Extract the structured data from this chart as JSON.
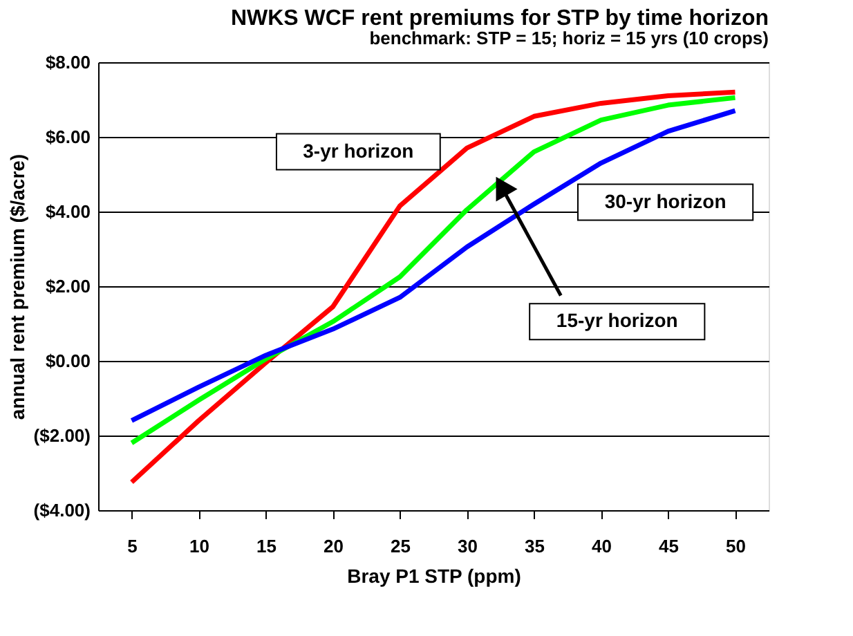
{
  "chart_data": {
    "type": "line",
    "title": "NWKS WCF rent premiums for STP by time horizon",
    "subtitle": "benchmark:   STP = 15; horiz = 15 yrs (10 crops)",
    "xlabel": "Bray P1 STP (ppm)",
    "ylabel": "annual rent premium ($/acre)",
    "x": [
      5,
      10,
      15,
      20,
      25,
      30,
      35,
      40,
      45,
      50
    ],
    "series": [
      {
        "name": "3-yr horizon",
        "color": "#ff0000",
        "values": [
          -3.25,
          -1.6,
          -0.05,
          1.45,
          4.15,
          5.7,
          6.55,
          6.9,
          7.1,
          7.2
        ]
      },
      {
        "color": "#00ff00",
        "values": [
          -2.2,
          -1.05,
          0.05,
          1.05,
          2.25,
          4.05,
          5.6,
          6.45,
          6.85,
          7.05
        ]
      },
      {
        "name": "30-yr horizon",
        "color": "#0000ff",
        "values": [
          -1.6,
          -0.7,
          0.15,
          0.85,
          1.7,
          3.05,
          4.2,
          5.3,
          6.15,
          6.7
        ]
      }
    ],
    "xlim": [
      2.5,
      52.5
    ],
    "xticks": [
      5,
      10,
      15,
      20,
      25,
      30,
      35,
      40,
      45,
      50
    ],
    "ylim": [
      -4,
      8
    ],
    "yticks": [
      {
        "value": -4,
        "label": "($4.00)"
      },
      {
        "value": -2,
        "label": "($2.00)"
      },
      {
        "value": 0,
        "label": "$0.00"
      },
      {
        "value": 2,
        "label": "$2.00"
      },
      {
        "value": 4,
        "label": "$4.00"
      },
      {
        "value": 6,
        "label": "$6.00"
      },
      {
        "value": 8,
        "label": "$8.00"
      }
    ],
    "annotations": [
      {
        "text": "15-yr horizon",
        "x": 32.7,
        "y": 4.6
      }
    ],
    "grid": "y",
    "legend": false,
    "marker": "none",
    "line_style": "solid"
  }
}
